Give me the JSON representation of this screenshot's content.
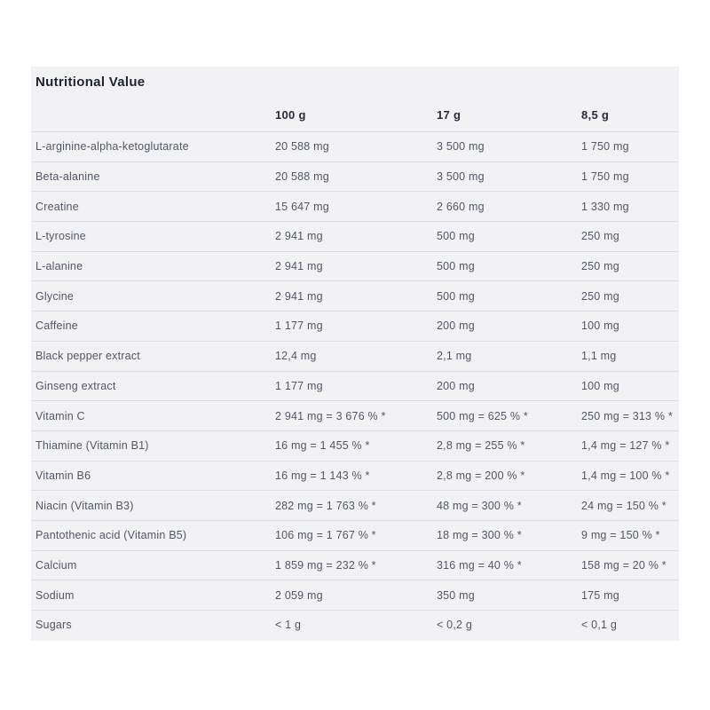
{
  "table": {
    "title": "Nutritional Value",
    "columns": [
      "",
      "100 g",
      "17 g",
      "8,5 g"
    ],
    "rows": [
      {
        "label": "L-arginine-alpha-ketoglutarate",
        "per_100g": "20 588 mg",
        "per_17g": "3 500 mg",
        "per_8_5g": "1 750 mg"
      },
      {
        "label": "Beta-alanine",
        "per_100g": "20 588 mg",
        "per_17g": "3 500 mg",
        "per_8_5g": "1 750 mg"
      },
      {
        "label": "Creatine",
        "per_100g": "15 647 mg",
        "per_17g": "2 660 mg",
        "per_8_5g": "1 330 mg"
      },
      {
        "label": "L-tyrosine",
        "per_100g": "2 941 mg",
        "per_17g": "500 mg",
        "per_8_5g": "250 mg"
      },
      {
        "label": "L-alanine",
        "per_100g": "2 941 mg",
        "per_17g": "500 mg",
        "per_8_5g": "250 mg"
      },
      {
        "label": "Glycine",
        "per_100g": "2 941 mg",
        "per_17g": "500 mg",
        "per_8_5g": "250 mg"
      },
      {
        "label": "Caffeine",
        "per_100g": "1 177 mg",
        "per_17g": "200 mg",
        "per_8_5g": "100 mg"
      },
      {
        "label": "Black pepper extract",
        "per_100g": "12,4 mg",
        "per_17g": "2,1 mg",
        "per_8_5g": "1,1 mg"
      },
      {
        "label": "Ginseng extract",
        "per_100g": "1 177 mg",
        "per_17g": "200 mg",
        "per_8_5g": "100 mg"
      },
      {
        "label": "Vitamin C",
        "per_100g": "2 941 mg = 3 676 % *",
        "per_17g": "500 mg = 625 % *",
        "per_8_5g": "250 mg = 313 % *"
      },
      {
        "label": "Thiamine (Vitamin B1)",
        "per_100g": "16 mg = 1 455 % *",
        "per_17g": "2,8 mg = 255 % *",
        "per_8_5g": "1,4 mg = 127 % *"
      },
      {
        "label": "Vitamin B6",
        "per_100g": "16 mg = 1 143 % *",
        "per_17g": "2,8 mg = 200 % *",
        "per_8_5g": "1,4 mg = 100 % *"
      },
      {
        "label": "Niacin (Vitamin B3)",
        "per_100g": "282 mg = 1 763 % *",
        "per_17g": "48 mg = 300 % *",
        "per_8_5g": "24 mg = 150 % *"
      },
      {
        "label": "Pantothenic acid (Vitamin B5)",
        "per_100g": "106 mg = 1 767 % *",
        "per_17g": "18 mg = 300 % *",
        "per_8_5g": "9 mg = 150 % *"
      },
      {
        "label": "Calcium",
        "per_100g": "1 859 mg = 232 % *",
        "per_17g": "316 mg = 40 % *",
        "per_8_5g": "158 mg = 20 % *"
      },
      {
        "label": "Sodium",
        "per_100g": "2 059 mg",
        "per_17g": "350 mg",
        "per_8_5g": "175 mg"
      },
      {
        "label": "Sugars",
        "per_100g": "< 1 g",
        "per_17g": "< 0,2 g",
        "per_8_5g": "< 0,1 g"
      }
    ]
  },
  "colors": {
    "card_background": "#f2f2f4",
    "title_text": "#1e232d",
    "header_text": "#262c38",
    "body_text": "#515765",
    "separator": "#dcdee2"
  }
}
